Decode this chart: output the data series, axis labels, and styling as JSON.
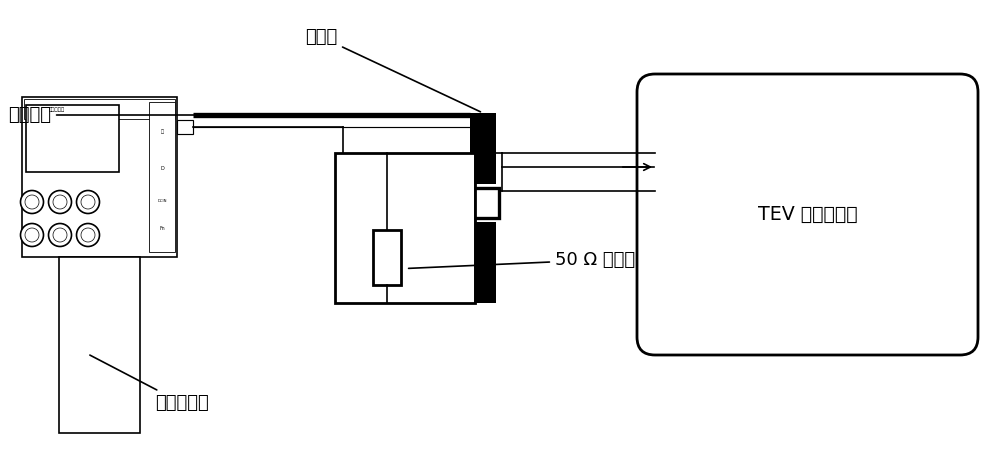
{
  "bg_color": "#ffffff",
  "lc": "#000000",
  "lw_thick": 7,
  "lw_med": 2.0,
  "lw_thin": 1.2,
  "fs": 13,
  "fs_small": 6,
  "labels": {
    "metal_plate": "金属板",
    "coax_cable": "同轴电缆",
    "tev_host": "TEV 检测仪主机",
    "resistor": "50 Ω 匹配头",
    "pulse_gen": "脉冲发生器"
  },
  "fig_w": 10.0,
  "fig_h": 4.75
}
